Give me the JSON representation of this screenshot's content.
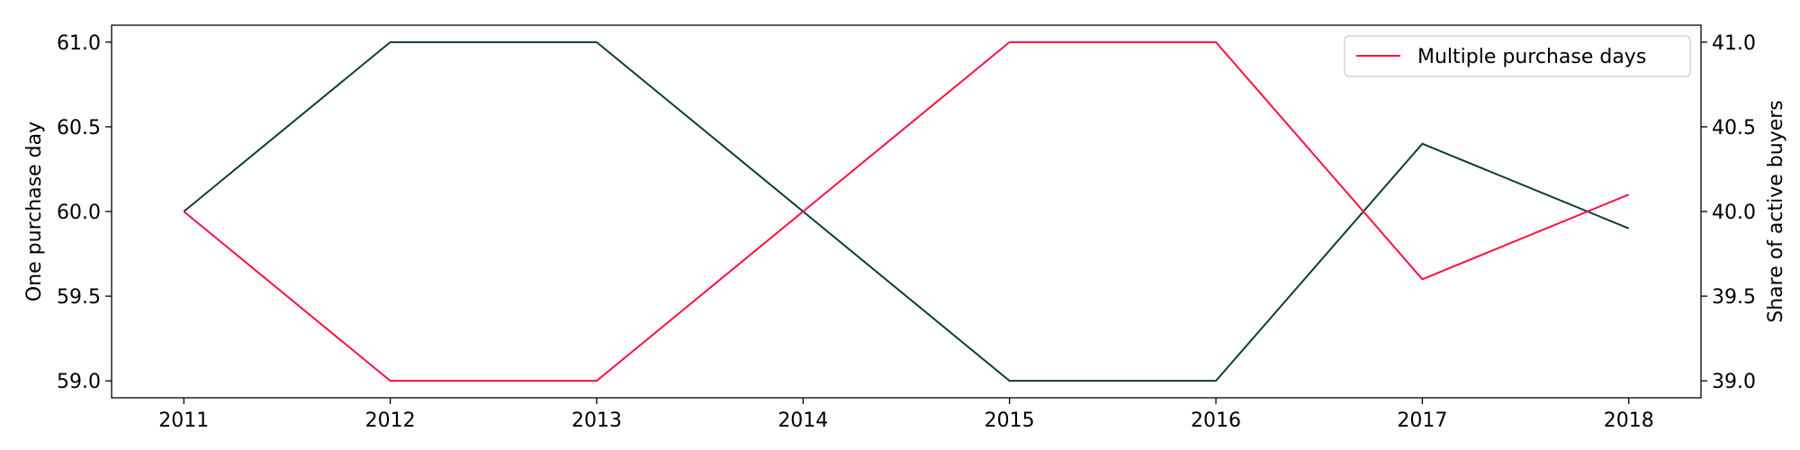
{
  "chart_data": {
    "type": "line",
    "x": [
      2011,
      2012,
      2013,
      2014,
      2015,
      2016,
      2017,
      2018
    ],
    "x_tick_labels": [
      "2011",
      "2012",
      "2013",
      "2014",
      "2015",
      "2016",
      "2017",
      "2018"
    ],
    "xlim": [
      2010.65,
      2018.35
    ],
    "left_axis": {
      "label": "One purchase day",
      "ylim": [
        58.9,
        61.1
      ],
      "ticks": [
        59.0,
        59.5,
        60.0,
        60.5,
        61.0
      ],
      "tick_labels": [
        "59.0",
        "59.5",
        "60.0",
        "60.5",
        "61.0"
      ]
    },
    "right_axis": {
      "label": "Share of active buyers",
      "ylim": [
        38.9,
        41.1
      ],
      "ticks": [
        39.0,
        39.5,
        40.0,
        40.5,
        41.0
      ],
      "tick_labels": [
        "39.0",
        "39.5",
        "40.0",
        "40.5",
        "41.0"
      ]
    },
    "series": [
      {
        "name": "One purchase day",
        "axis": "left",
        "color": "#0b3d3a",
        "values": [
          60.0,
          61.0,
          61.0,
          60.0,
          59.0,
          59.0,
          60.4,
          59.9
        ]
      },
      {
        "name": "Multiple purchase days",
        "axis": "right",
        "color": "#ff0f3f",
        "values": [
          40.0,
          39.0,
          39.0,
          40.0,
          41.0,
          41.0,
          39.6,
          40.1
        ]
      }
    ],
    "legend": {
      "entries": [
        "Multiple purchase days"
      ],
      "location": "top-right"
    },
    "grid": false
  }
}
